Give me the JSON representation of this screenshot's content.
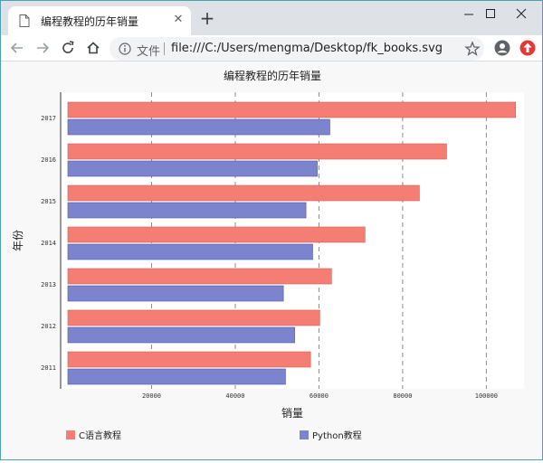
{
  "browser": {
    "tab_title": "编程教程的历年销量",
    "tab_close": "✕",
    "new_tab": "+",
    "scheme_label": "文件",
    "url": "file:///C:/Users/mengma/Desktop/fk_books.svg"
  },
  "colors": {
    "series1": "#f57e74",
    "series2": "#7b84cc",
    "plot_bg": "#ffffff",
    "page_bg": "#f8f8f8"
  },
  "chart_data": {
    "type": "bar",
    "orientation": "horizontal",
    "title": "编程教程的历年销量",
    "xlabel": "销量",
    "ylabel": "年份",
    "categories": [
      "2011",
      "2012",
      "2013",
      "2014",
      "2015",
      "2016",
      "2017"
    ],
    "series": [
      {
        "name": "C语言教程",
        "values": [
          58000,
          60200,
          63000,
          71000,
          84000,
          90500,
          107000
        ]
      },
      {
        "name": "Python教程",
        "values": [
          52000,
          54200,
          51500,
          58500,
          56900,
          59600,
          62600
        ]
      }
    ],
    "xticks": [
      20000,
      40000,
      60000,
      80000,
      100000
    ],
    "xlim": [
      0,
      109000
    ],
    "grid": "vertical dashed",
    "legend": "bottom"
  }
}
